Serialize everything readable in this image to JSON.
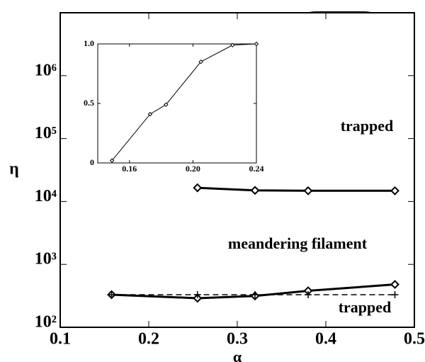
{
  "chart_data": [
    {
      "type": "line",
      "xlabel": "α",
      "ylabel": "η",
      "yscale": "log",
      "xlim": [
        0.1,
        0.5
      ],
      "ylim": [
        100,
        10000000
      ],
      "xticks": [
        0.1,
        0.2,
        0.3,
        0.4,
        0.5
      ],
      "yticks": [
        {
          "value": 100,
          "label": "10²"
        },
        {
          "value": 1000,
          "label": "10³"
        },
        {
          "value": 10000,
          "label": "10⁴"
        },
        {
          "value": 100000,
          "label": "10⁵"
        },
        {
          "value": 1000000,
          "label": "10⁶"
        }
      ],
      "series": [
        {
          "color": "#000000",
          "marker": "diamond",
          "dashed": false,
          "x": [
            0.255,
            0.32,
            0.38,
            0.478
          ],
          "values": [
            16500,
            15000,
            14800,
            14800
          ]
        },
        {
          "color": "#000000",
          "marker": "diamond",
          "dashed": false,
          "x": [
            0.158,
            0.255,
            0.32,
            0.38,
            0.478
          ],
          "values": [
            330,
            290,
            315,
            380,
            480
          ]
        },
        {
          "color": "#000000",
          "marker": "plus",
          "dashed": true,
          "x": [
            0.158,
            0.255,
            0.32,
            0.38,
            0.478
          ],
          "values": [
            330,
            330,
            330,
            330,
            330
          ]
        }
      ],
      "annotations": [
        "trapped",
        "meandering filament",
        "trapped"
      ]
    },
    {
      "type": "line",
      "xlim": [
        0.14,
        0.24
      ],
      "ylim": [
        0,
        1
      ],
      "xticks": [
        0.16,
        {
          "value": 0.2,
          "label": "0.20"
        },
        0.24
      ],
      "yticks": [
        0,
        0.5,
        {
          "value": 1,
          "label": "1.0"
        }
      ],
      "series": [
        {
          "color": "#000000",
          "marker": "small-diamond",
          "dashed": false,
          "x": [
            0.149,
            0.173,
            0.183,
            0.205,
            0.225,
            0.24
          ],
          "values": [
            0.02,
            0.41,
            0.49,
            0.85,
            0.99,
            1.0
          ]
        }
      ]
    }
  ]
}
